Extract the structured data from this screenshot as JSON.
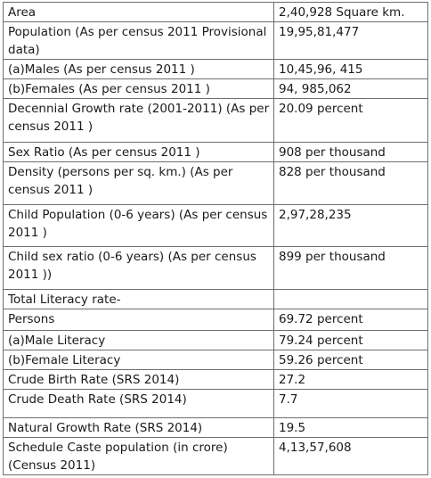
{
  "table": {
    "rows": [
      {
        "label": "Area",
        "value": "2,40,928 Square km."
      },
      {
        "label": "Population (As per census 2011 Provisional data)",
        "value": "19,95,81,477"
      },
      {
        "label": "(a)Males (As per census 2011 )",
        "value": "10,45,96, 415"
      },
      {
        "label": "(b)Females (As per census 2011 )",
        "value": "94, 985,062"
      },
      {
        "label": "Decennial Growth rate (2001-2011) (As per census 2011 )",
        "value": "20.09 percent"
      },
      {
        "label": "Sex Ratio (As per census 2011 )",
        "value": "908 per thousand"
      },
      {
        "label": "Density (persons per sq. km.) (As per census 2011 )",
        "value": "828 per thousand"
      },
      {
        "label": "Child Population (0-6 years) (As per census 2011 )",
        "value": "2,97,28,235"
      },
      {
        "label": "Child sex ratio (0-6 years) (As per census 2011 ))",
        "value": "899 per thousand"
      },
      {
        "label": "Total Literacy rate-",
        "value": ""
      },
      {
        "label": "Persons",
        "value": "69.72 percent"
      },
      {
        "label": "(a)Male Literacy",
        "value": "79.24 percent"
      },
      {
        "label": "(b)Female Literacy",
        "value": "59.26 percent"
      },
      {
        "label": "Crude Birth Rate (SRS 2014)",
        "value": "27.2"
      },
      {
        "label": "Crude Death Rate (SRS 2014)",
        "value": "7.7"
      },
      {
        "label": "Natural Growth Rate (SRS 2014)",
        "value": "19.5"
      },
      {
        "label": "Schedule Caste population (in crore) (Census 2011)",
        "value": "4,13,57,608"
      }
    ]
  }
}
